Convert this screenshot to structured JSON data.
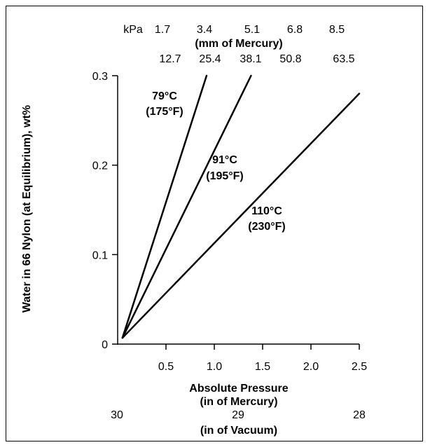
{
  "chart_data": {
    "type": "line",
    "x_axis": {
      "label_line1": "Absolute Pressure",
      "label_line2": "(in of Mercury)",
      "range": [
        0,
        2.5
      ],
      "ticks": [
        0.5,
        1.0,
        1.5,
        2.0,
        2.5
      ],
      "tick_labels": [
        "0.5",
        "1.0",
        "1.5",
        "2.0",
        "2.5"
      ]
    },
    "x_vacuum_axis": {
      "tick_labels": [
        "30",
        "29",
        "28"
      ],
      "label": "(in of Vacuum)"
    },
    "top_axis_mm": {
      "label": "(mm of Mercury)",
      "tick_labels": [
        "12.7",
        "25.4",
        "38.1",
        "50.8",
        "63.5"
      ]
    },
    "top_axis_kpa": {
      "unit": "kPa",
      "tick_labels": [
        "1.7",
        "3.4",
        "5.1",
        "6.8",
        "8.5"
      ]
    },
    "y_axis": {
      "label": "Water in 66 Nylon (at Equilibrium), wt%",
      "range": [
        0,
        0.3
      ],
      "ticks": [
        0,
        0.1,
        0.2,
        0.3
      ],
      "tick_labels": [
        "0",
        "0.1",
        "0.2",
        "0.3"
      ]
    },
    "series": [
      {
        "name_line1": "79°C",
        "name_line2": "(175°F)",
        "x": [
          0.05,
          0.92
        ],
        "y": [
          0.007,
          0.3
        ]
      },
      {
        "name_line1": "91°C",
        "name_line2": "(195°F)",
        "x": [
          0.05,
          1.38
        ],
        "y": [
          0.007,
          0.3
        ]
      },
      {
        "name_line1": "110°C",
        "name_line2": "(230°F)",
        "x": [
          0.05,
          2.5
        ],
        "y": [
          0.007,
          0.28
        ]
      }
    ],
    "line_color": "#000000"
  }
}
